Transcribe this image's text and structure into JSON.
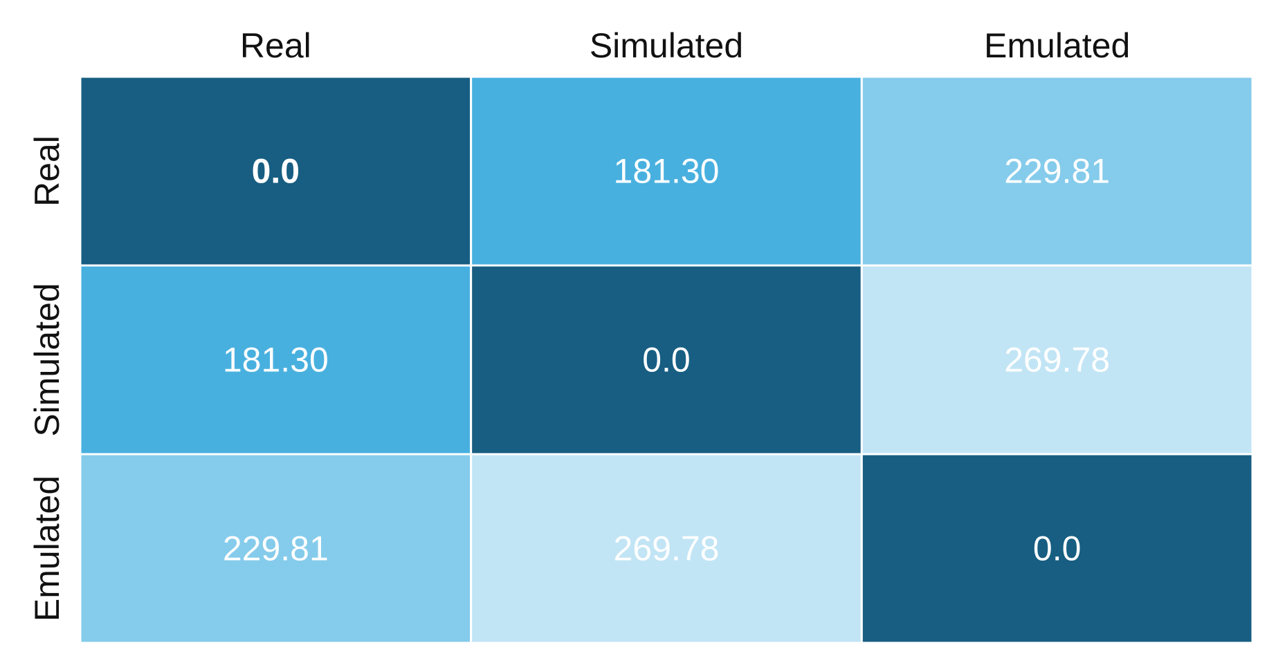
{
  "chart_data": {
    "type": "heatmap",
    "title": "",
    "xlabel": "",
    "ylabel": "",
    "x_categories": [
      "Real",
      "Simulated",
      "Emulated"
    ],
    "y_categories": [
      "Real",
      "Simulated",
      "Emulated"
    ],
    "values": [
      [
        "0.0",
        "181.30",
        "229.81"
      ],
      [
        "181.30",
        "0.0",
        "269.78"
      ],
      [
        "229.81",
        "269.78",
        "0.0"
      ]
    ],
    "bold_cells": [
      [
        0,
        0
      ]
    ],
    "colors": {
      "zero": "#175e82",
      "low": "#48b0df",
      "mid": "#85cbeb",
      "high": "#c2e5f5",
      "cell_text": "#ffffff",
      "label_text": "#111111",
      "gridline": "#ffffff"
    },
    "color_stops": [
      {
        "value": 0,
        "color": "#175e82"
      },
      {
        "value": 181.3,
        "color": "#48b0df"
      },
      {
        "value": 229.81,
        "color": "#85cbeb"
      },
      {
        "value": 269.78,
        "color": "#c2e5f5"
      }
    ]
  }
}
